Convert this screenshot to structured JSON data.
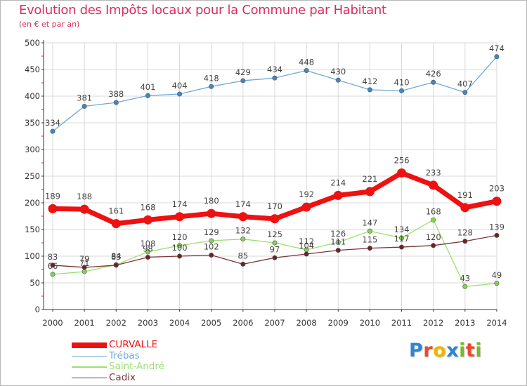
{
  "chart_data": {
    "type": "line",
    "title": "Evolution des Impôts locaux pour la Commune par Habitant",
    "subtitle": "(en € et par an)",
    "xlabel": "",
    "ylabel": "",
    "x": [
      "2000",
      "2001",
      "2002",
      "2003",
      "2004",
      "2005",
      "2006",
      "2007",
      "2008",
      "2009",
      "2010",
      "2011",
      "2012",
      "2013",
      "2014"
    ],
    "ylim": [
      0,
      500
    ],
    "yticks": [
      0,
      50,
      100,
      150,
      200,
      250,
      300,
      350,
      400,
      450,
      500
    ],
    "grid": true,
    "legend_position": "bottom-left",
    "series": [
      {
        "name": "Trébas",
        "color": "#6fa8d8",
        "marker": "#3e88c8",
        "values": [
          334,
          381,
          388,
          401,
          404,
          418,
          429,
          434,
          448,
          430,
          412,
          410,
          426,
          407,
          474
        ],
        "labels": [
          "334",
          "381",
          "388",
          "401",
          "404",
          "418",
          "429",
          "434",
          "448",
          "430",
          "412",
          "410",
          "426",
          "407",
          "474"
        ]
      },
      {
        "name": "Saint-André",
        "color": "#9be072",
        "marker": "#82d450",
        "values": [
          66,
          71,
          84,
          108,
          120,
          129,
          132,
          125,
          112,
          126,
          147,
          134,
          168,
          43,
          49
        ],
        "labels": [
          "66",
          "71",
          "84",
          "108",
          "120",
          "129",
          "132",
          "125",
          "112",
          "126",
          "147",
          "134",
          "168",
          "43",
          "49"
        ]
      },
      {
        "name": "Cadix",
        "color": "#7a3535",
        "marker": "#6a2424",
        "values": [
          83,
          79,
          83,
          98,
          100,
          102,
          85,
          97,
          104,
          111,
          115,
          117,
          120,
          128,
          139
        ],
        "labels": [
          "83",
          "79",
          "83",
          "98",
          "100",
          "102",
          "85",
          "97",
          "104",
          "111",
          "115",
          "117",
          "120",
          "128",
          "139"
        ]
      },
      {
        "name": "CURVALLE",
        "color": "#ee1111",
        "marker": "#ee1111",
        "values": [
          189,
          188,
          161,
          168,
          174,
          180,
          174,
          170,
          192,
          214,
          221,
          256,
          233,
          191,
          203
        ],
        "labels": [
          "189",
          "188",
          "161",
          "168",
          "174",
          "180",
          "174",
          "170",
          "192",
          "214",
          "221",
          "256",
          "233",
          "191",
          "203"
        ]
      }
    ],
    "legend": [
      "CURVALLE",
      "Trébas",
      "Saint-André",
      "Cadix"
    ]
  },
  "colors": {
    "title": "#d9305e",
    "axis": "#333333",
    "grid": "#d8d8d8",
    "tick_mark": "#cc1a1a"
  },
  "logo": {
    "text": "Proxiti",
    "letters": [
      "P",
      "r",
      "o",
      "x",
      "i",
      "t",
      "i"
    ],
    "colors": [
      "#2e86d1",
      "#e84a2a",
      "#f0b400",
      "#2e86d1",
      "#79b928",
      "#e84a2a",
      "#79b928"
    ]
  }
}
